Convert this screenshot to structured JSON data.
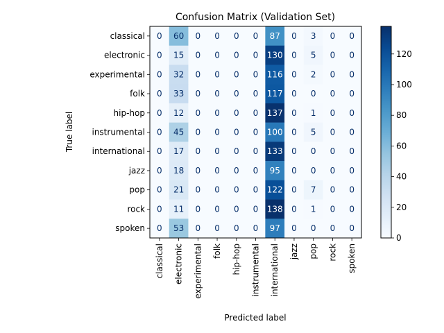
{
  "chart_data": {
    "type": "heatmap",
    "title": "Confusion Matrix (Validation Set)",
    "xlabel": "Predicted label",
    "ylabel": "True label",
    "labels": [
      "classical",
      "electronic",
      "experimental",
      "folk",
      "hip-hop",
      "instrumental",
      "international",
      "jazz",
      "pop",
      "rock",
      "spoken"
    ],
    "matrix": [
      [
        0,
        60,
        0,
        0,
        0,
        0,
        87,
        0,
        3,
        0,
        0
      ],
      [
        0,
        15,
        0,
        0,
        0,
        0,
        130,
        0,
        5,
        0,
        0
      ],
      [
        0,
        32,
        0,
        0,
        0,
        0,
        116,
        0,
        2,
        0,
        0
      ],
      [
        0,
        33,
        0,
        0,
        0,
        0,
        117,
        0,
        0,
        0,
        0
      ],
      [
        0,
        12,
        0,
        0,
        0,
        0,
        137,
        0,
        1,
        0,
        0
      ],
      [
        0,
        45,
        0,
        0,
        0,
        0,
        100,
        0,
        5,
        0,
        0
      ],
      [
        0,
        17,
        0,
        0,
        0,
        0,
        133,
        0,
        0,
        0,
        0
      ],
      [
        0,
        18,
        0,
        0,
        0,
        0,
        95,
        0,
        0,
        0,
        0
      ],
      [
        0,
        21,
        0,
        0,
        0,
        0,
        122,
        0,
        7,
        0,
        0
      ],
      [
        0,
        11,
        0,
        0,
        0,
        0,
        138,
        0,
        1,
        0,
        0
      ],
      [
        0,
        53,
        0,
        0,
        0,
        0,
        97,
        0,
        0,
        0,
        0
      ]
    ],
    "colormap": "Blues",
    "vmin": 0,
    "vmax": 138,
    "colorbar_ticks": [
      0,
      20,
      40,
      60,
      80,
      100,
      120
    ],
    "grid": false
  }
}
